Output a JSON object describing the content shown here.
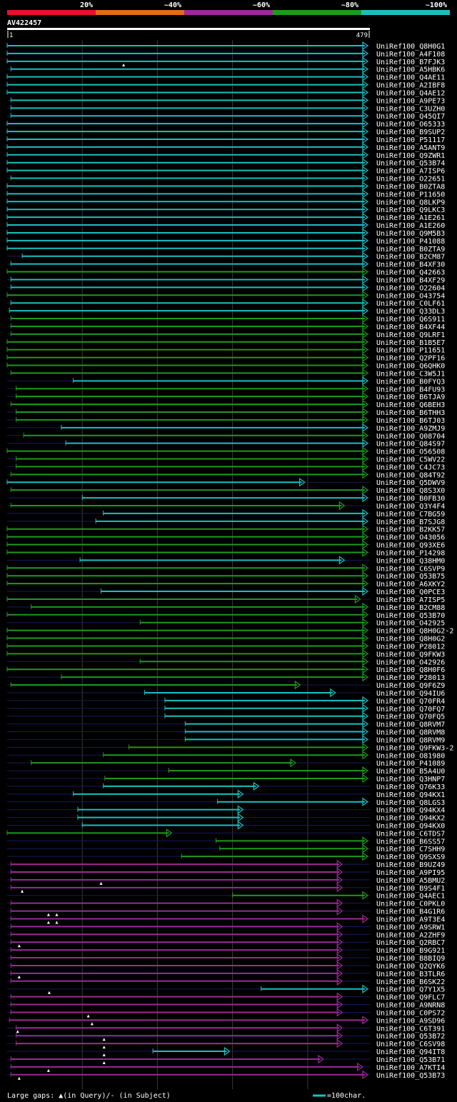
{
  "chart_data": {
    "type": "alignment-overview",
    "query_id": "AV422457",
    "query_start": "1",
    "query_end": "479",
    "query_length": 479,
    "plot_range": [
      0,
      479
    ],
    "legend": {
      "identity_bins": [
        {
          "label": "20%",
          "color": "#e8102a"
        },
        {
          "label": "~40%",
          "color": "#e06c14"
        },
        {
          "label": "~60%",
          "color": "#9c2a94"
        },
        {
          "label": "~80%",
          "color": "#1e9a1e"
        },
        {
          "label": "~100%",
          "color": "#19c0c0"
        }
      ],
      "gap_note": "Large gaps: ▲(in Query)/- (in Subject)",
      "scale_text": "=100char."
    },
    "colors": {
      "cyan": "#19c0c0",
      "green": "#1e9a1e",
      "purple": "#9c2a94",
      "background": "#000000",
      "grid": "#3a3a3a",
      "subject_extension": "#1a1a5a"
    },
    "hits": [
      {
        "name": "UniRef100_Q8H0G1",
        "start": 0,
        "end": 479,
        "color": "cyan"
      },
      {
        "name": "UniRef100_A4F108",
        "start": 0,
        "end": 479,
        "color": "cyan"
      },
      {
        "name": "UniRef100_B7FJK3",
        "start": 0,
        "end": 479,
        "color": "cyan"
      },
      {
        "name": "UniRef100_A5HBK6",
        "start": 5,
        "end": 479,
        "color": "cyan"
      },
      {
        "name": "UniRef100_Q4AE11",
        "start": 0,
        "end": 479,
        "color": "cyan"
      },
      {
        "name": "UniRef100_A2IBF8",
        "start": 0,
        "end": 479,
        "color": "cyan"
      },
      {
        "name": "UniRef100_Q4AE12",
        "start": 0,
        "end": 479,
        "color": "cyan"
      },
      {
        "name": "UniRef100_A9PE73",
        "start": 5,
        "end": 479,
        "color": "cyan"
      },
      {
        "name": "UniRef100_C3UZH0",
        "start": 5,
        "end": 479,
        "color": "cyan"
      },
      {
        "name": "UniRef100_Q45QI7",
        "start": 5,
        "end": 479,
        "color": "cyan"
      },
      {
        "name": "UniRef100_O65333",
        "start": 0,
        "end": 479,
        "color": "cyan"
      },
      {
        "name": "UniRef100_B9SUP2",
        "start": 0,
        "end": 479,
        "color": "cyan"
      },
      {
        "name": "UniRef100_P51117",
        "start": 0,
        "end": 479,
        "color": "cyan"
      },
      {
        "name": "UniRef100_A5ANT9",
        "start": 0,
        "end": 479,
        "color": "cyan"
      },
      {
        "name": "UniRef100_Q9ZWR1",
        "start": 0,
        "end": 479,
        "color": "cyan"
      },
      {
        "name": "UniRef100_Q53B74",
        "start": 0,
        "end": 479,
        "color": "cyan"
      },
      {
        "name": "UniRef100_A7ISP6",
        "start": 0,
        "end": 479,
        "color": "cyan"
      },
      {
        "name": "UniRef100_O22651",
        "start": 5,
        "end": 479,
        "color": "cyan"
      },
      {
        "name": "UniRef100_B0ZTA8",
        "start": 0,
        "end": 479,
        "color": "cyan"
      },
      {
        "name": "UniRef100_P11650",
        "start": 0,
        "end": 479,
        "color": "cyan"
      },
      {
        "name": "UniRef100_Q8LKP9",
        "start": 0,
        "end": 479,
        "color": "cyan"
      },
      {
        "name": "UniRef100_Q9LKC3",
        "start": 0,
        "end": 479,
        "color": "cyan"
      },
      {
        "name": "UniRef100_A1E261",
        "start": 0,
        "end": 479,
        "color": "cyan"
      },
      {
        "name": "UniRef100_A1E260",
        "start": 0,
        "end": 479,
        "color": "cyan"
      },
      {
        "name": "UniRef100_Q9M5B3",
        "start": 0,
        "end": 479,
        "color": "cyan"
      },
      {
        "name": "UniRef100_P41088",
        "start": 0,
        "end": 479,
        "color": "cyan"
      },
      {
        "name": "UniRef100_B0ZTA9",
        "start": 0,
        "end": 479,
        "color": "cyan"
      },
      {
        "name": "UniRef100_B2CM87",
        "start": 20,
        "end": 479,
        "color": "cyan"
      },
      {
        "name": "UniRef100_B4XF30",
        "start": 5,
        "end": 479,
        "color": "cyan"
      },
      {
        "name": "UniRef100_Q42663",
        "start": 0,
        "end": 479,
        "color": "green"
      },
      {
        "name": "UniRef100_B4XF29",
        "start": 5,
        "end": 479,
        "color": "cyan"
      },
      {
        "name": "UniRef100_O22604",
        "start": 5,
        "end": 479,
        "color": "cyan"
      },
      {
        "name": "UniRef100_O43754",
        "start": 0,
        "end": 479,
        "color": "green"
      },
      {
        "name": "UniRef100_C0LF61",
        "start": 5,
        "end": 479,
        "color": "cyan"
      },
      {
        "name": "UniRef100_Q33DL3",
        "start": 3,
        "end": 479,
        "color": "cyan"
      },
      {
        "name": "UniRef100_Q6S911",
        "start": 5,
        "end": 479,
        "color": "green"
      },
      {
        "name": "UniRef100_B4XF44",
        "start": 5,
        "end": 479,
        "color": "green"
      },
      {
        "name": "UniRef100_Q9LRF1",
        "start": 5,
        "end": 479,
        "color": "green"
      },
      {
        "name": "UniRef100_B1B5E7",
        "start": 0,
        "end": 479,
        "color": "green"
      },
      {
        "name": "UniRef100_P11651",
        "start": 0,
        "end": 479,
        "color": "green"
      },
      {
        "name": "UniRef100_Q2PF16",
        "start": 0,
        "end": 479,
        "color": "green"
      },
      {
        "name": "UniRef100_Q6QHK0",
        "start": 0,
        "end": 479,
        "color": "green"
      },
      {
        "name": "UniRef100_C3W5J1",
        "start": 5,
        "end": 479,
        "color": "green"
      },
      {
        "name": "UniRef100_B0FYQ3",
        "start": 88,
        "end": 479,
        "color": "cyan"
      },
      {
        "name": "UniRef100_B4FU93",
        "start": 12,
        "end": 479,
        "color": "green"
      },
      {
        "name": "UniRef100_B6TJA9",
        "start": 12,
        "end": 479,
        "color": "green"
      },
      {
        "name": "UniRef100_Q6BEH3",
        "start": 5,
        "end": 479,
        "color": "green"
      },
      {
        "name": "UniRef100_B6THH3",
        "start": 12,
        "end": 479,
        "color": "green"
      },
      {
        "name": "UniRef100_B6TJ03",
        "start": 12,
        "end": 479,
        "color": "green"
      },
      {
        "name": "UniRef100_A9ZMJ9",
        "start": 72,
        "end": 479,
        "color": "cyan"
      },
      {
        "name": "UniRef100_Q08704",
        "start": 22,
        "end": 479,
        "color": "green"
      },
      {
        "name": "UniRef100_Q84S97",
        "start": 78,
        "end": 479,
        "color": "cyan"
      },
      {
        "name": "UniRef100_O56508",
        "start": 0,
        "end": 479,
        "color": "green"
      },
      {
        "name": "UniRef100_C5WV22",
        "start": 12,
        "end": 479,
        "color": "green"
      },
      {
        "name": "UniRef100_C4JC73",
        "start": 12,
        "end": 479,
        "color": "green"
      },
      {
        "name": "UniRef100_Q84T92",
        "start": 5,
        "end": 479,
        "color": "green"
      },
      {
        "name": "UniRef100_Q5DWV9",
        "start": 0,
        "end": 395,
        "color": "cyan"
      },
      {
        "name": "UniRef100_Q8S3X0",
        "start": 5,
        "end": 479,
        "color": "green"
      },
      {
        "name": "UniRef100_B0FB30",
        "start": 100,
        "end": 479,
        "color": "cyan"
      },
      {
        "name": "UniRef100_Q3Y4F4",
        "start": 5,
        "end": 448,
        "color": "green"
      },
      {
        "name": "UniRef100_C7BG59",
        "start": 128,
        "end": 479,
        "color": "cyan"
      },
      {
        "name": "UniRef100_B7SJG8",
        "start": 118,
        "end": 479,
        "color": "cyan"
      },
      {
        "name": "UniRef100_B2KK57",
        "start": 0,
        "end": 479,
        "color": "green"
      },
      {
        "name": "UniRef100_O43056",
        "start": 0,
        "end": 479,
        "color": "green"
      },
      {
        "name": "UniRef100_Q93XE6",
        "start": 0,
        "end": 479,
        "color": "green"
      },
      {
        "name": "UniRef100_P14298",
        "start": 0,
        "end": 479,
        "color": "green"
      },
      {
        "name": "UniRef100_Q38HM0",
        "start": 97,
        "end": 448,
        "color": "cyan"
      },
      {
        "name": "UniRef100_C6SVP9",
        "start": 0,
        "end": 479,
        "color": "green"
      },
      {
        "name": "UniRef100_Q53B75",
        "start": 0,
        "end": 479,
        "color": "green"
      },
      {
        "name": "UniRef100_A6XKY2",
        "start": 0,
        "end": 479,
        "color": "green"
      },
      {
        "name": "UniRef100_Q0PCE3",
        "start": 125,
        "end": 479,
        "color": "cyan"
      },
      {
        "name": "UniRef100_A7ISP5",
        "start": 0,
        "end": 469,
        "color": "green"
      },
      {
        "name": "UniRef100_B2CM88",
        "start": 32,
        "end": 479,
        "color": "green"
      },
      {
        "name": "UniRef100_Q53B70",
        "start": 0,
        "end": 479,
        "color": "green"
      },
      {
        "name": "UniRef100_O42925",
        "start": 177,
        "end": 479,
        "color": "green"
      },
      {
        "name": "UniRef100_Q8H0G2-2",
        "start": 0,
        "end": 479,
        "color": "green"
      },
      {
        "name": "UniRef100_Q8H0G2",
        "start": 0,
        "end": 479,
        "color": "green"
      },
      {
        "name": "UniRef100_P28012",
        "start": 0,
        "end": 479,
        "color": "green"
      },
      {
        "name": "UniRef100_Q9FKW3",
        "start": 0,
        "end": 479,
        "color": "green"
      },
      {
        "name": "UniRef100_O42926",
        "start": 177,
        "end": 479,
        "color": "green"
      },
      {
        "name": "UniRef100_Q8H0F6",
        "start": 0,
        "end": 479,
        "color": "green"
      },
      {
        "name": "UniRef100_P28013",
        "start": 72,
        "end": 479,
        "color": "green"
      },
      {
        "name": "UniRef100_Q9F6Z9",
        "start": 5,
        "end": 389,
        "color": "green"
      },
      {
        "name": "UniRef100_Q94IU6",
        "start": 183,
        "end": 436,
        "color": "cyan"
      },
      {
        "name": "UniRef100_Q70FR4",
        "start": 210,
        "end": 479,
        "color": "cyan"
      },
      {
        "name": "UniRef100_Q70FQ7",
        "start": 210,
        "end": 479,
        "color": "cyan"
      },
      {
        "name": "UniRef100_Q70FQ5",
        "start": 210,
        "end": 479,
        "color": "cyan"
      },
      {
        "name": "UniRef100_Q8RVM7",
        "start": 237,
        "end": 479,
        "color": "cyan"
      },
      {
        "name": "UniRef100_Q8RVM8",
        "start": 237,
        "end": 479,
        "color": "cyan"
      },
      {
        "name": "UniRef100_Q8RVM9",
        "start": 237,
        "end": 479,
        "color": "cyan"
      },
      {
        "name": "UniRef100_Q9FKW3-2",
        "start": 162,
        "end": 479,
        "color": "green"
      },
      {
        "name": "UniRef100_O81980",
        "start": 128,
        "end": 479,
        "color": "green"
      },
      {
        "name": "UniRef100_P41089",
        "start": 32,
        "end": 383,
        "color": "green"
      },
      {
        "name": "UniRef100_B5A4U0",
        "start": 215,
        "end": 479,
        "color": "green"
      },
      {
        "name": "UniRef100_Q3HNP7",
        "start": 130,
        "end": 479,
        "color": "green"
      },
      {
        "name": "UniRef100_Q76K33",
        "start": 128,
        "end": 334,
        "color": "cyan"
      },
      {
        "name": "UniRef100_Q94KX1",
        "start": 88,
        "end": 313,
        "color": "cyan"
      },
      {
        "name": "UniRef100_Q8LGS3",
        "start": 280,
        "end": 479,
        "color": "cyan"
      },
      {
        "name": "UniRef100_Q94KX4",
        "start": 94,
        "end": 313,
        "color": "cyan"
      },
      {
        "name": "UniRef100_Q94KX2",
        "start": 94,
        "end": 313,
        "color": "cyan"
      },
      {
        "name": "UniRef100_Q94KX0",
        "start": 100,
        "end": 313,
        "color": "cyan"
      },
      {
        "name": "UniRef100_C6TDS7",
        "start": 0,
        "end": 218,
        "color": "green"
      },
      {
        "name": "UniRef100_B6SS57",
        "start": 278,
        "end": 479,
        "color": "green"
      },
      {
        "name": "UniRef100_C7SHH9",
        "start": 283,
        "end": 479,
        "color": "green"
      },
      {
        "name": "UniRef100_Q9SXS9",
        "start": 232,
        "end": 479,
        "color": "green"
      },
      {
        "name": "UniRef100_B9UZ49",
        "start": 5,
        "end": 445,
        "color": "purple"
      },
      {
        "name": "UniRef100_A9PI95",
        "start": 5,
        "end": 445,
        "color": "purple"
      },
      {
        "name": "UniRef100_A5BMU2",
        "start": 5,
        "end": 445,
        "color": "purple"
      },
      {
        "name": "UniRef100_B9S4F1",
        "start": 5,
        "end": 445,
        "color": "purple"
      },
      {
        "name": "UniRef100_Q4AEC1",
        "start": 300,
        "end": 479,
        "color": "green"
      },
      {
        "name": "UniRef100_C0PKL0",
        "start": 5,
        "end": 445,
        "color": "purple"
      },
      {
        "name": "UniRef100_B4G1R6",
        "start": 5,
        "end": 445,
        "color": "purple"
      },
      {
        "name": "UniRef100_A9T3E4",
        "start": 5,
        "end": 479,
        "color": "purple"
      },
      {
        "name": "UniRef100_A9SRW1",
        "start": 5,
        "end": 445,
        "color": "purple"
      },
      {
        "name": "UniRef100_A2ZHF9",
        "start": 5,
        "end": 445,
        "color": "purple"
      },
      {
        "name": "UniRef100_Q2RBC7",
        "start": 5,
        "end": 445,
        "color": "purple"
      },
      {
        "name": "UniRef100_B9G921",
        "start": 5,
        "end": 445,
        "color": "purple"
      },
      {
        "name": "UniRef100_B8BIQ9",
        "start": 5,
        "end": 445,
        "color": "purple"
      },
      {
        "name": "UniRef100_Q2QYK6",
        "start": 5,
        "end": 445,
        "color": "purple"
      },
      {
        "name": "UniRef100_B3TLR6",
        "start": 5,
        "end": 445,
        "color": "purple"
      },
      {
        "name": "UniRef100_B6SK22",
        "start": 5,
        "end": 445,
        "color": "purple"
      },
      {
        "name": "UniRef100_Q7Y1X5",
        "start": 338,
        "end": 479,
        "color": "cyan"
      },
      {
        "name": "UniRef100_Q9FLC7",
        "start": 5,
        "end": 445,
        "color": "purple"
      },
      {
        "name": "UniRef100_A9NRN8",
        "start": 5,
        "end": 445,
        "color": "purple"
      },
      {
        "name": "UniRef100_C0PS72",
        "start": 5,
        "end": 445,
        "color": "purple"
      },
      {
        "name": "UniRef100_A9SD96",
        "start": 3,
        "end": 479,
        "color": "purple"
      },
      {
        "name": "UniRef100_C6T391",
        "start": 12,
        "end": 445,
        "color": "purple"
      },
      {
        "name": "UniRef100_Q53B72",
        "start": 12,
        "end": 445,
        "color": "purple"
      },
      {
        "name": "UniRef100_C6SV98",
        "start": 12,
        "end": 445,
        "color": "purple"
      },
      {
        "name": "UniRef100_Q94IT8",
        "start": 194,
        "end": 295,
        "color": "cyan"
      },
      {
        "name": "UniRef100_Q53B71",
        "start": 5,
        "end": 420,
        "color": "purple"
      },
      {
        "name": "UniRef100_A7KTI4",
        "start": 5,
        "end": 472,
        "color": "purple"
      },
      {
        "name": "UniRef100_Q53B73",
        "start": 5,
        "end": 479,
        "color": "purple"
      }
    ],
    "query_gaps": [
      {
        "row": "UniRef100_B7FJK3",
        "pos": 155
      },
      {
        "row": "UniRef100_A5BMU2",
        "pos": 125
      },
      {
        "row": "UniRef100_B9S4F1",
        "pos": 20
      },
      {
        "row": "UniRef100_B4G1R6",
        "pos": 55
      },
      {
        "row": "UniRef100_B4G1R6",
        "pos": 66
      },
      {
        "row": "UniRef100_A9T3E4",
        "pos": 55
      },
      {
        "row": "UniRef100_A9T3E4",
        "pos": 66
      },
      {
        "row": "UniRef100_Q2RBC7",
        "pos": 16
      },
      {
        "row": "UniRef100_B3TLR6",
        "pos": 16
      },
      {
        "row": "UniRef100_Q7Y1X5",
        "pos": 56
      },
      {
        "row": "UniRef100_C0PS72",
        "pos": 108
      },
      {
        "row": "UniRef100_A9SD96",
        "pos": 113
      },
      {
        "row": "UniRef100_C6T391",
        "pos": 14
      },
      {
        "row": "UniRef100_Q53B72",
        "pos": 129
      },
      {
        "row": "UniRef100_C6SV98",
        "pos": 129
      },
      {
        "row": "UniRef100_Q94IT8",
        "pos": 129
      },
      {
        "row": "UniRef100_Q53B71",
        "pos": 129
      },
      {
        "row": "UniRef100_A7KTI4",
        "pos": 55
      },
      {
        "row": "UniRef100_Q53B73",
        "pos": 16
      }
    ]
  }
}
